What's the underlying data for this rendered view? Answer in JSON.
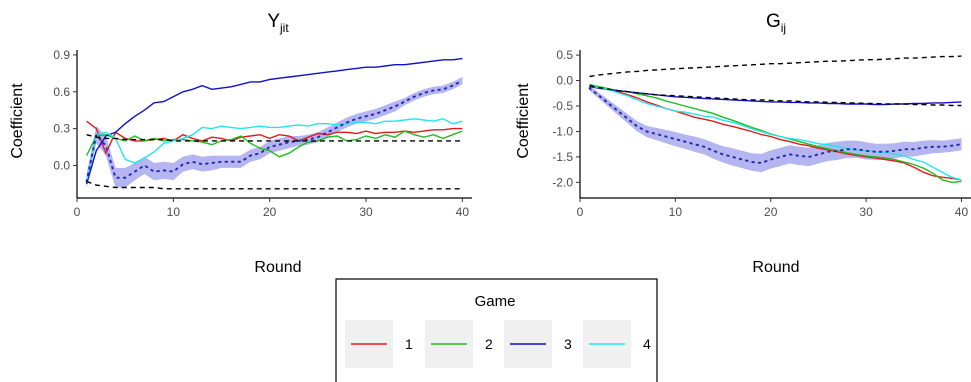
{
  "chart_data": [
    {
      "type": "line",
      "title": "Y",
      "title_sub": "jit",
      "xlabel": "Round",
      "ylabel": "Coefficient",
      "xlim": [
        0,
        41
      ],
      "ylim": [
        -0.2,
        0.94
      ],
      "xticks": [
        0,
        10,
        20,
        30,
        40
      ],
      "yticks": [
        0.0,
        0.3,
        0.6,
        0.9
      ],
      "ytick_labels": [
        "0.0",
        "0.3",
        "0.6",
        "0.9"
      ],
      "x": [
        1,
        2,
        3,
        4,
        5,
        6,
        7,
        8,
        9,
        10,
        11,
        12,
        13,
        14,
        15,
        16,
        17,
        18,
        19,
        20,
        21,
        22,
        23,
        24,
        25,
        26,
        27,
        28,
        29,
        30,
        31,
        32,
        33,
        34,
        35,
        36,
        37,
        38,
        39,
        40
      ],
      "series": [
        {
          "name": "1",
          "color": "#e41a1c",
          "style": "solid",
          "values": [
            0.36,
            0.3,
            0.1,
            0.27,
            0.22,
            0.2,
            0.2,
            0.21,
            0.22,
            0.2,
            0.25,
            0.22,
            0.2,
            0.23,
            0.22,
            0.2,
            0.23,
            0.24,
            0.25,
            0.22,
            0.25,
            0.24,
            0.2,
            0.23,
            0.26,
            0.25,
            0.27,
            0.27,
            0.26,
            0.28,
            0.26,
            0.27,
            0.27,
            0.28,
            0.27,
            0.28,
            0.29,
            0.29,
            0.3,
            0.3
          ]
        },
        {
          "name": "2",
          "color": "#1fbd1f",
          "style": "solid",
          "values": [
            0.08,
            0.24,
            0.25,
            0.22,
            0.2,
            0.24,
            0.2,
            0.22,
            0.2,
            0.21,
            0.21,
            0.2,
            0.19,
            0.17,
            0.2,
            0.21,
            0.24,
            0.18,
            0.14,
            0.12,
            0.07,
            0.1,
            0.15,
            0.19,
            0.2,
            0.23,
            0.24,
            0.2,
            0.21,
            0.24,
            0.22,
            0.25,
            0.23,
            0.28,
            0.25,
            0.23,
            0.25,
            0.22,
            0.25,
            0.28
          ]
        },
        {
          "name": "3",
          "color": "#1010c8",
          "style": "solid",
          "values": [
            -0.15,
            0.12,
            0.24,
            0.27,
            0.34,
            0.4,
            0.45,
            0.51,
            0.52,
            0.56,
            0.6,
            0.62,
            0.65,
            0.62,
            0.63,
            0.64,
            0.66,
            0.68,
            0.68,
            0.7,
            0.71,
            0.72,
            0.73,
            0.74,
            0.75,
            0.76,
            0.77,
            0.78,
            0.79,
            0.8,
            0.8,
            0.81,
            0.82,
            0.82,
            0.83,
            0.84,
            0.85,
            0.86,
            0.86,
            0.87
          ]
        },
        {
          "name": "4",
          "color": "#22e6ee",
          "style": "solid",
          "values": [
            -0.13,
            0.25,
            0.27,
            0.22,
            0.05,
            0.02,
            0.06,
            0.11,
            0.18,
            0.2,
            0.22,
            0.25,
            0.31,
            0.3,
            0.32,
            0.31,
            0.3,
            0.31,
            0.32,
            0.31,
            0.31,
            0.32,
            0.33,
            0.32,
            0.34,
            0.34,
            0.33,
            0.34,
            0.35,
            0.35,
            0.34,
            0.36,
            0.36,
            0.37,
            0.38,
            0.37,
            0.36,
            0.38,
            0.34,
            0.36
          ]
        },
        {
          "name": "",
          "color": "#2b2bb0",
          "style": "dotted",
          "band_color": "#9c9ced",
          "values": [
            -0.13,
            0.25,
            0.16,
            -0.1,
            -0.1,
            -0.05,
            0.0,
            -0.05,
            -0.04,
            -0.05,
            0.01,
            0.03,
            0.01,
            0.02,
            0.03,
            0.03,
            0.03,
            0.08,
            0.1,
            0.15,
            0.17,
            0.19,
            0.2,
            0.21,
            0.23,
            0.27,
            0.31,
            0.35,
            0.38,
            0.4,
            0.42,
            0.45,
            0.48,
            0.52,
            0.56,
            0.59,
            0.61,
            0.62,
            0.65,
            0.69
          ],
          "band": [
            0.06,
            0.07,
            0.08,
            0.08,
            0.08,
            0.07,
            0.07,
            0.07,
            0.07,
            0.07,
            0.06,
            0.06,
            0.06,
            0.06,
            0.05,
            0.05,
            0.05,
            0.05,
            0.05,
            0.05,
            0.05,
            0.05,
            0.04,
            0.04,
            0.04,
            0.04,
            0.04,
            0.04,
            0.04,
            0.04,
            0.04,
            0.04,
            0.04,
            0.03,
            0.03,
            0.03,
            0.03,
            0.03,
            0.03,
            0.03
          ]
        },
        {
          "name": "",
          "color": "#000000",
          "style": "dashed",
          "values": [
            0.25,
            0.23,
            0.22,
            0.22,
            0.21,
            0.21,
            0.21,
            0.21,
            0.21,
            0.2,
            0.2,
            0.2,
            0.2,
            0.2,
            0.2,
            0.2,
            0.2,
            0.2,
            0.2,
            0.2,
            0.2,
            0.2,
            0.2,
            0.2,
            0.2,
            0.2,
            0.2,
            0.2,
            0.2,
            0.2,
            0.2,
            0.2,
            0.2,
            0.2,
            0.2,
            0.2,
            0.2,
            0.2,
            0.2,
            0.2
          ]
        },
        {
          "name": "",
          "color": "#000000",
          "style": "dashed",
          "values": [
            -0.13,
            -0.16,
            -0.17,
            -0.18,
            -0.18,
            -0.18,
            -0.18,
            -0.18,
            -0.19,
            -0.19,
            -0.19,
            -0.19,
            -0.19,
            -0.19,
            -0.19,
            -0.19,
            -0.19,
            -0.19,
            -0.19,
            -0.19,
            -0.19,
            -0.19,
            -0.19,
            -0.19,
            -0.19,
            -0.19,
            -0.19,
            -0.19,
            -0.19,
            -0.19,
            -0.19,
            -0.19,
            -0.19,
            -0.19,
            -0.19,
            -0.19,
            -0.19,
            -0.19,
            -0.19,
            -0.19
          ]
        }
      ]
    },
    {
      "type": "line",
      "title": "G",
      "title_sub": "ij",
      "xlabel": "Round",
      "ylabel": "Coefficient",
      "xlim": [
        0,
        41
      ],
      "ylim": [
        -2.15,
        0.6
      ],
      "xticks": [
        0,
        10,
        20,
        30,
        40
      ],
      "yticks": [
        0.5,
        0.0,
        -0.5,
        -1.0,
        -1.5,
        -2.0
      ],
      "ytick_labels": [
        "0.5",
        "0.0",
        "-0.5",
        "-1.0",
        "-1.5",
        "-2.0"
      ],
      "x": [
        1,
        2,
        3,
        4,
        5,
        6,
        7,
        8,
        9,
        10,
        11,
        12,
        13,
        14,
        15,
        16,
        17,
        18,
        19,
        20,
        21,
        22,
        23,
        24,
        25,
        26,
        27,
        28,
        29,
        30,
        31,
        32,
        33,
        34,
        35,
        36,
        37,
        38,
        39,
        40
      ],
      "series": [
        {
          "name": "1",
          "color": "#e41a1c",
          "style": "solid",
          "values": [
            -0.1,
            -0.15,
            -0.18,
            -0.22,
            -0.28,
            -0.34,
            -0.42,
            -0.48,
            -0.55,
            -0.6,
            -0.66,
            -0.72,
            -0.76,
            -0.8,
            -0.86,
            -0.9,
            -0.95,
            -1.0,
            -1.06,
            -1.1,
            -1.16,
            -1.2,
            -1.25,
            -1.28,
            -1.33,
            -1.36,
            -1.4,
            -1.44,
            -1.47,
            -1.5,
            -1.52,
            -1.55,
            -1.58,
            -1.62,
            -1.7,
            -1.8,
            -1.87,
            -1.9,
            -1.92,
            -1.95
          ]
        },
        {
          "name": "2",
          "color": "#1fbd1f",
          "style": "solid",
          "values": [
            -0.08,
            -0.12,
            -0.16,
            -0.2,
            -0.22,
            -0.26,
            -0.3,
            -0.34,
            -0.4,
            -0.45,
            -0.5,
            -0.55,
            -0.6,
            -0.65,
            -0.72,
            -0.78,
            -0.85,
            -0.92,
            -0.98,
            -1.05,
            -1.1,
            -1.15,
            -1.2,
            -1.25,
            -1.3,
            -1.34,
            -1.38,
            -1.42,
            -1.45,
            -1.48,
            -1.5,
            -1.52,
            -1.55,
            -1.6,
            -1.65,
            -1.72,
            -1.82,
            -1.95,
            -2.0,
            -1.98
          ]
        },
        {
          "name": "3",
          "color": "#1010c8",
          "style": "solid",
          "values": [
            -0.12,
            -0.15,
            -0.18,
            -0.2,
            -0.22,
            -0.24,
            -0.26,
            -0.28,
            -0.3,
            -0.32,
            -0.33,
            -0.34,
            -0.35,
            -0.36,
            -0.37,
            -0.38,
            -0.39,
            -0.4,
            -0.41,
            -0.42,
            -0.42,
            -0.43,
            -0.43,
            -0.44,
            -0.44,
            -0.45,
            -0.45,
            -0.46,
            -0.46,
            -0.46,
            -0.47,
            -0.47,
            -0.46,
            -0.46,
            -0.45,
            -0.45,
            -0.44,
            -0.44,
            -0.43,
            -0.42
          ]
        },
        {
          "name": "4",
          "color": "#22e6ee",
          "style": "solid",
          "values": [
            -0.1,
            -0.14,
            -0.18,
            -0.24,
            -0.3,
            -0.38,
            -0.45,
            -0.5,
            -0.55,
            -0.6,
            -0.62,
            -0.66,
            -0.7,
            -0.72,
            -0.78,
            -0.82,
            -0.88,
            -0.95,
            -1.0,
            -1.06,
            -1.1,
            -1.14,
            -1.16,
            -1.2,
            -1.24,
            -1.26,
            -1.3,
            -1.33,
            -1.36,
            -1.38,
            -1.4,
            -1.42,
            -1.44,
            -1.48,
            -1.55,
            -1.6,
            -1.7,
            -1.8,
            -1.9,
            -1.95
          ]
        },
        {
          "name": "",
          "color": "#2b2bb0",
          "style": "dotted",
          "band_color": "#9c9ced",
          "values": [
            -0.15,
            -0.3,
            -0.45,
            -0.6,
            -0.75,
            -0.9,
            -1.0,
            -1.05,
            -1.1,
            -1.15,
            -1.2,
            -1.25,
            -1.3,
            -1.38,
            -1.45,
            -1.5,
            -1.55,
            -1.6,
            -1.62,
            -1.55,
            -1.5,
            -1.45,
            -1.48,
            -1.5,
            -1.45,
            -1.4,
            -1.38,
            -1.35,
            -1.35,
            -1.38,
            -1.4,
            -1.4,
            -1.38,
            -1.35,
            -1.35,
            -1.32,
            -1.3,
            -1.3,
            -1.28,
            -1.25
          ],
          "band": [
            0.05,
            0.06,
            0.07,
            0.08,
            0.09,
            0.1,
            0.11,
            0.12,
            0.13,
            0.14,
            0.14,
            0.15,
            0.15,
            0.16,
            0.16,
            0.17,
            0.17,
            0.17,
            0.18,
            0.18,
            0.18,
            0.18,
            0.18,
            0.18,
            0.18,
            0.18,
            0.18,
            0.17,
            0.17,
            0.17,
            0.16,
            0.16,
            0.15,
            0.15,
            0.14,
            0.14,
            0.13,
            0.12,
            0.12,
            0.12
          ]
        },
        {
          "name": "",
          "color": "#000000",
          "style": "dashed",
          "values": [
            0.08,
            0.11,
            0.13,
            0.15,
            0.17,
            0.18,
            0.2,
            0.21,
            0.22,
            0.23,
            0.24,
            0.25,
            0.26,
            0.27,
            0.28,
            0.29,
            0.3,
            0.31,
            0.32,
            0.33,
            0.33,
            0.34,
            0.35,
            0.36,
            0.37,
            0.38,
            0.38,
            0.39,
            0.4,
            0.41,
            0.41,
            0.42,
            0.43,
            0.44,
            0.44,
            0.45,
            0.46,
            0.47,
            0.47,
            0.48
          ]
        },
        {
          "name": "",
          "color": "#000000",
          "style": "dashed",
          "values": [
            -0.1,
            -0.14,
            -0.17,
            -0.2,
            -0.22,
            -0.24,
            -0.26,
            -0.28,
            -0.29,
            -0.3,
            -0.31,
            -0.32,
            -0.33,
            -0.34,
            -0.35,
            -0.36,
            -0.37,
            -0.38,
            -0.38,
            -0.39,
            -0.4,
            -0.4,
            -0.41,
            -0.42,
            -0.42,
            -0.43,
            -0.43,
            -0.44,
            -0.44,
            -0.45,
            -0.45,
            -0.46,
            -0.46,
            -0.46,
            -0.47,
            -0.47,
            -0.48,
            -0.48,
            -0.49,
            -0.49
          ]
        }
      ]
    }
  ],
  "legend": {
    "title": "Game",
    "items": [
      {
        "label": "1",
        "color": "#e41a1c"
      },
      {
        "label": "2",
        "color": "#1fbd1f"
      },
      {
        "label": "3",
        "color": "#1010c8"
      },
      {
        "label": "4",
        "color": "#22e6ee"
      }
    ],
    "key_background": "#f0f0f0"
  }
}
